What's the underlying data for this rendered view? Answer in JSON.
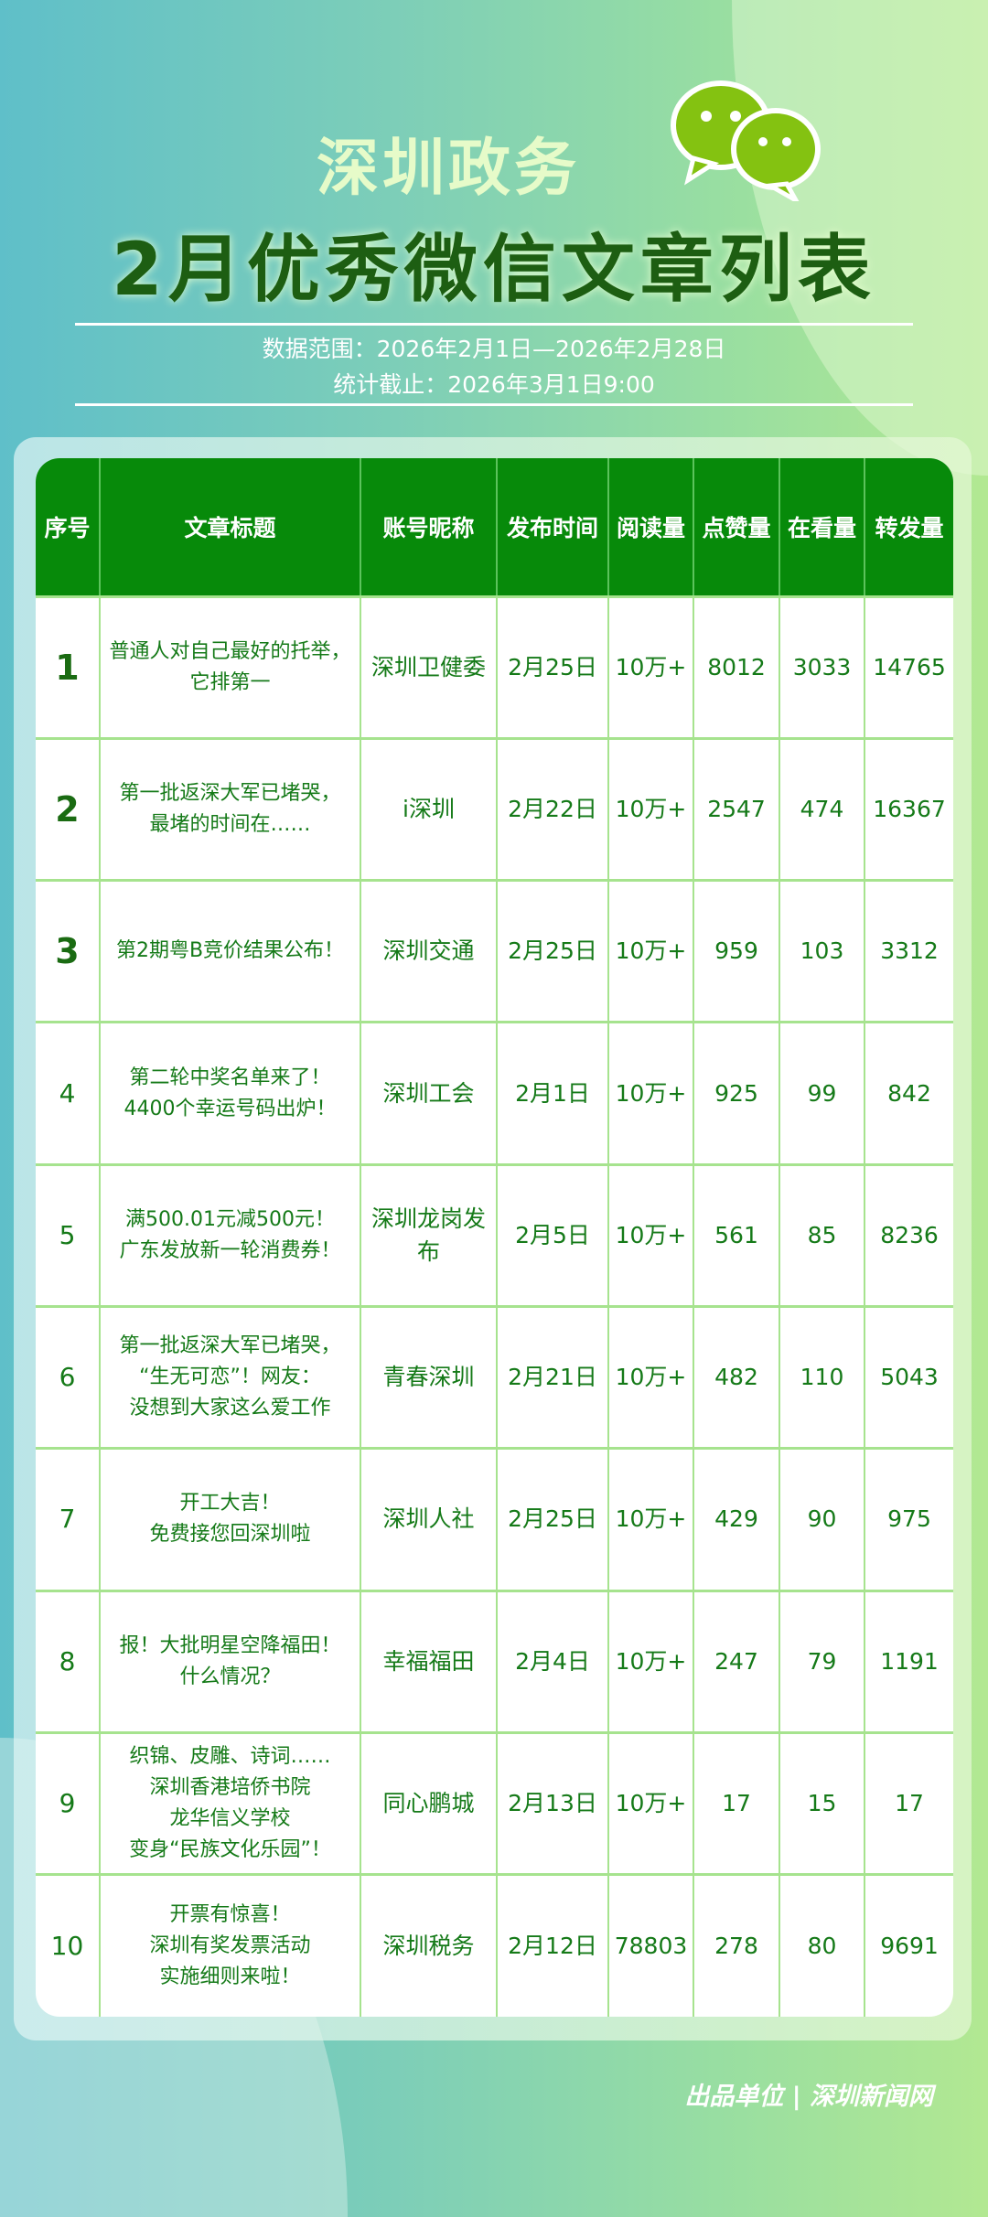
{
  "header": {
    "brand": "深圳政务",
    "title": "2月优秀微信文章列表",
    "logo_icon": "wechat-icon",
    "date_range": "数据范围：2026年2月1日—2026年2月28日",
    "cutoff": "统计截止：2026年3月1日9:00"
  },
  "table": {
    "columns": [
      "序号",
      "文章标题",
      "账号昵称",
      "发布时间",
      "阅读量",
      "点赞量",
      "在看量",
      "转发量"
    ],
    "rows": [
      [
        "1",
        "普通人对自己最好的托举，\n它排第一",
        "深圳卫健委",
        "2月25日",
        "10万+",
        "8012",
        "3033",
        "14765"
      ],
      [
        "2",
        "第一批返深大军已堵哭，\n最堵的时间在……",
        "i深圳",
        "2月22日",
        "10万+",
        "2547",
        "474",
        "16367"
      ],
      [
        "3",
        "第2期粤B竞价结果公布！",
        "深圳交通",
        "2月25日",
        "10万+",
        "959",
        "103",
        "3312"
      ],
      [
        "4",
        "第二轮中奖名单来了！\n4400个幸运号码出炉！",
        "深圳工会",
        "2月1日",
        "10万+",
        "925",
        "99",
        "842"
      ],
      [
        "5",
        "满500.01元减500元！\n广东发放新一轮消费券！",
        "深圳龙岗发布",
        "2月5日",
        "10万+",
        "561",
        "85",
        "8236"
      ],
      [
        "6",
        "第一批返深大军已堵哭，\n“生无可恋”！网友：\n没想到大家这么爱工作",
        "青春深圳",
        "2月21日",
        "10万+",
        "482",
        "110",
        "5043"
      ],
      [
        "7",
        "开工大吉！\n免费接您回深圳啦",
        "深圳人社",
        "2月25日",
        "10万+",
        "429",
        "90",
        "975"
      ],
      [
        "8",
        "报！大批明星空降福田！\n什么情况？",
        "幸福福田",
        "2月4日",
        "10万+",
        "247",
        "79",
        "1191"
      ],
      [
        "9",
        "织锦、皮雕、诗词……\n深圳香港培侨书院\n龙华信义学校\n变身“民族文化乐园”！",
        "同心鹏城",
        "2月13日",
        "10万+",
        "17",
        "15",
        "17"
      ],
      [
        "10",
        "开票有惊喜！\n深圳有奖发票活动\n实施细则来啦！",
        "深圳税务",
        "2月12日",
        "78803",
        "278",
        "80",
        "9691"
      ]
    ]
  },
  "footer": "出品单位 | 深圳新闻网",
  "colors": {
    "header_bg": "#078a0a",
    "text": "#157a18",
    "grid": "#a6e38e"
  }
}
